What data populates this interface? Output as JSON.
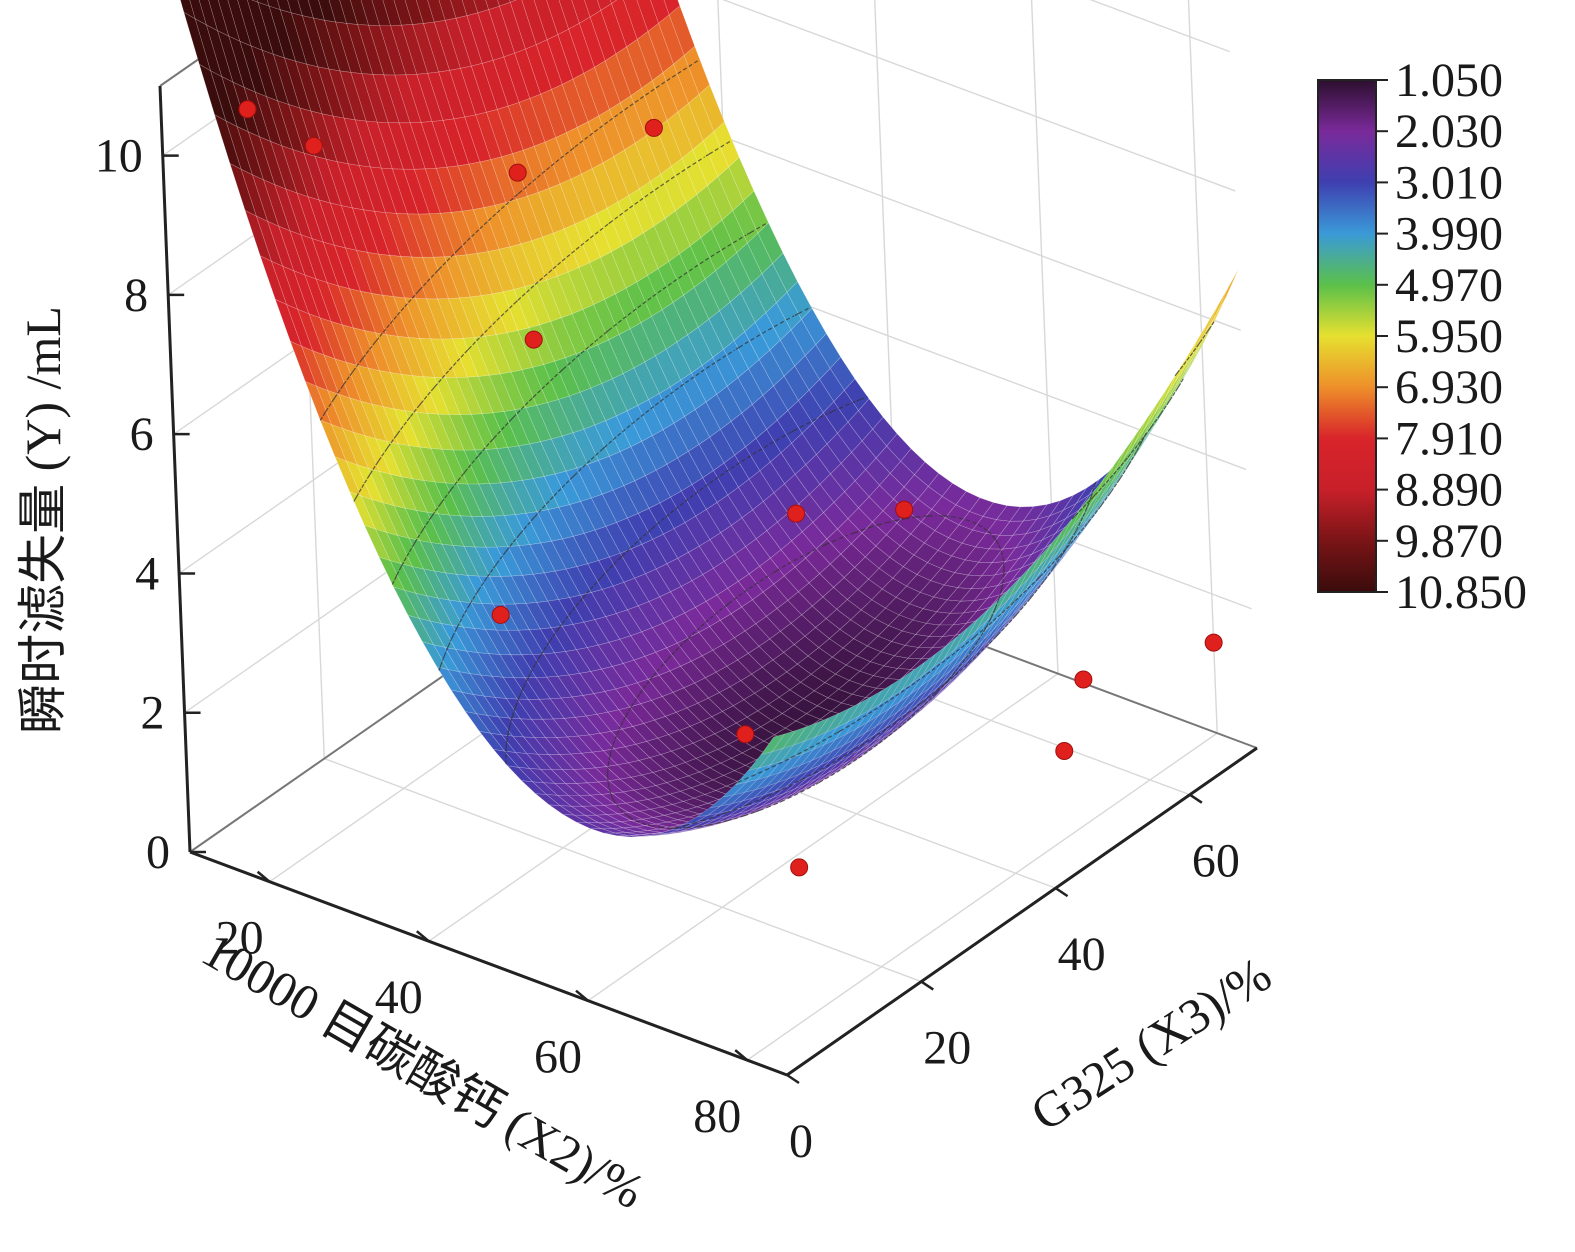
{
  "chart_data": {
    "type": "surface3d",
    "zlabel": "瞬时滤失量 (Y) /mL",
    "xlabel": "10000 目碳酸钙 (X2)/%",
    "ylabel": "G325 (X3)/%",
    "z_ticks": [
      "0",
      "2",
      "4",
      "6",
      "8",
      "10"
    ],
    "x_ticks": [
      "20",
      "40",
      "60",
      "80"
    ],
    "y_ticks": [
      "0",
      "20",
      "40",
      "60"
    ],
    "x_range": [
      10,
      85
    ],
    "y_range": [
      0,
      70
    ],
    "z_range": [
      0,
      11
    ],
    "colorbar": {
      "labels": [
        "1.050",
        "2.030",
        "3.010",
        "3.990",
        "4.970",
        "5.950",
        "6.930",
        "7.910",
        "8.890",
        "9.870",
        "10.850"
      ],
      "colors": [
        "#2c0f2e",
        "#7a2a9a",
        "#3f3fb0",
        "#3a9ad8",
        "#5bc04a",
        "#e6e030",
        "#ee8f2a",
        "#d8242a",
        "#c8202a",
        "#7a1416",
        "#3a0c0c"
      ]
    },
    "surface_model": {
      "a0": 1.2,
      "ax": 0.0042,
      "x0": 56,
      "ay": 0.001,
      "y0": 38,
      "axy": 0.0012,
      "contour_levels": [
        2,
        3,
        4,
        5,
        6,
        7
      ]
    },
    "points": [
      {
        "x": 14,
        "y": 8,
        "z": 10.3
      },
      {
        "x": 17,
        "y": 14,
        "z": 9.5
      },
      {
        "x": 20,
        "y": 40,
        "z": 7.5
      },
      {
        "x": 20,
        "y": 60,
        "z": 6.8
      },
      {
        "x": 30,
        "y": 30,
        "z": 6.2
      },
      {
        "x": 42,
        "y": 10,
        "z": 4.1
      },
      {
        "x": 45,
        "y": 50,
        "z": 3.0
      },
      {
        "x": 50,
        "y": 60,
        "z": 2.6
      },
      {
        "x": 55,
        "y": 30,
        "z": 1.6
      },
      {
        "x": 70,
        "y": 20,
        "z": 1.0
      },
      {
        "x": 72,
        "y": 60,
        "z": 1.1
      },
      {
        "x": 78,
        "y": 50,
        "z": 1.0
      },
      {
        "x": 80,
        "y": 70,
        "z": 1.3
      }
    ],
    "point_color": "#e0201c",
    "grid": true
  }
}
